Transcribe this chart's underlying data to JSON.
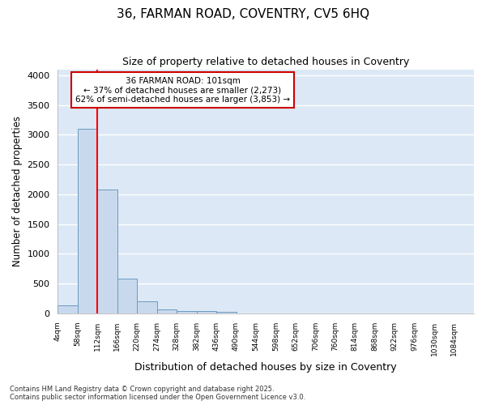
{
  "title": "36, FARMAN ROAD, COVENTRY, CV5 6HQ",
  "subtitle": "Size of property relative to detached houses in Coventry",
  "xlabel": "Distribution of detached houses by size in Coventry",
  "ylabel": "Number of detached properties",
  "bin_labels": [
    "4sqm",
    "58sqm",
    "112sqm",
    "166sqm",
    "220sqm",
    "274sqm",
    "328sqm",
    "382sqm",
    "436sqm",
    "490sqm",
    "544sqm",
    "598sqm",
    "652sqm",
    "706sqm",
    "760sqm",
    "814sqm",
    "868sqm",
    "922sqm",
    "976sqm",
    "1030sqm",
    "1084sqm"
  ],
  "bar_values": [
    140,
    3100,
    2080,
    580,
    205,
    68,
    42,
    35,
    30,
    0,
    0,
    0,
    0,
    0,
    0,
    0,
    0,
    0,
    0,
    0,
    0
  ],
  "bar_color": "#c9d9ed",
  "bar_edge_color": "#6a9abf",
  "plot_bg_color": "#dce8f5",
  "fig_bg_color": "#ffffff",
  "grid_color": "#ffffff",
  "red_line_x": 2,
  "annotation_text": "36 FARMAN ROAD: 101sqm\n← 37% of detached houses are smaller (2,273)\n62% of semi-detached houses are larger (3,853) →",
  "annotation_box_color": "#ffffff",
  "annotation_box_edge": "#cc0000",
  "ylim": [
    0,
    4100
  ],
  "yticks": [
    0,
    500,
    1000,
    1500,
    2000,
    2500,
    3000,
    3500,
    4000
  ],
  "footer_line1": "Contains HM Land Registry data © Crown copyright and database right 2025.",
  "footer_line2": "Contains public sector information licensed under the Open Government Licence v3.0."
}
